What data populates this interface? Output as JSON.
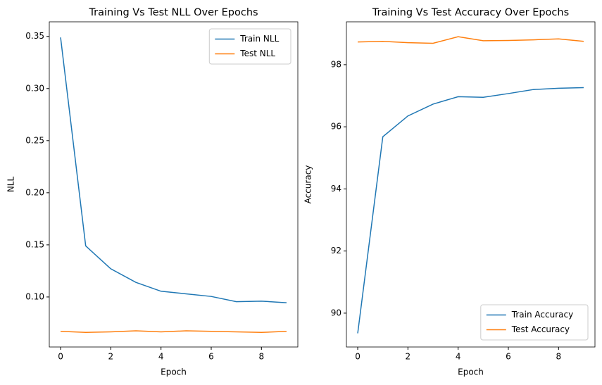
{
  "chart_data": [
    {
      "type": "line",
      "title": "Training Vs Test NLL Over Epochs",
      "x_label": "Epoch",
      "y_label": "NLL",
      "x": [
        0,
        1,
        2,
        3,
        4,
        5,
        6,
        7,
        8,
        9
      ],
      "series": [
        {
          "name": "Train NLL",
          "color": "#1f77b4",
          "values": [
            0.349,
            0.149,
            0.127,
            0.114,
            0.1055,
            0.103,
            0.1005,
            0.0955,
            0.096,
            0.0945
          ]
        },
        {
          "name": "Test NLL",
          "color": "#ff7f0e",
          "values": [
            0.067,
            0.066,
            0.0665,
            0.0675,
            0.0665,
            0.0675,
            0.067,
            0.0665,
            0.066,
            0.067
          ]
        }
      ],
      "xlim": [
        -0.45,
        9.45
      ],
      "xticks": [
        0,
        2,
        4,
        6,
        8
      ],
      "ylim": [
        0.052,
        0.364
      ],
      "yticks": [
        {
          "value": 0.1,
          "label": "0.10"
        },
        0.15,
        {
          "value": 0.2,
          "label": "0.20"
        },
        0.25,
        {
          "value": 0.3,
          "label": "0.30"
        },
        0.35
      ],
      "legend": "upper right",
      "grid": false
    },
    {
      "type": "line",
      "title": "Training Vs Test Accuracy Over Epochs",
      "x_label": "Epoch",
      "y_label": "Accuracy",
      "x": [
        0,
        1,
        2,
        3,
        4,
        5,
        6,
        7,
        8,
        9
      ],
      "series": [
        {
          "name": "Train Accuracy",
          "color": "#1f77b4",
          "values": [
            89.35,
            95.68,
            96.35,
            96.73,
            96.97,
            96.95,
            97.07,
            97.2,
            97.24,
            97.26
          ]
        },
        {
          "name": "Test Accuracy",
          "color": "#ff7f0e",
          "values": [
            98.73,
            98.75,
            98.71,
            98.69,
            98.9,
            98.77,
            98.78,
            98.8,
            98.83,
            98.75
          ]
        }
      ],
      "xlim": [
        -0.45,
        9.45
      ],
      "xticks": [
        0,
        2,
        4,
        6,
        8
      ],
      "ylim": [
        88.91,
        99.38
      ],
      "yticks": [
        90,
        92,
        94,
        96,
        98
      ],
      "legend": "lower right",
      "grid": false
    }
  ]
}
